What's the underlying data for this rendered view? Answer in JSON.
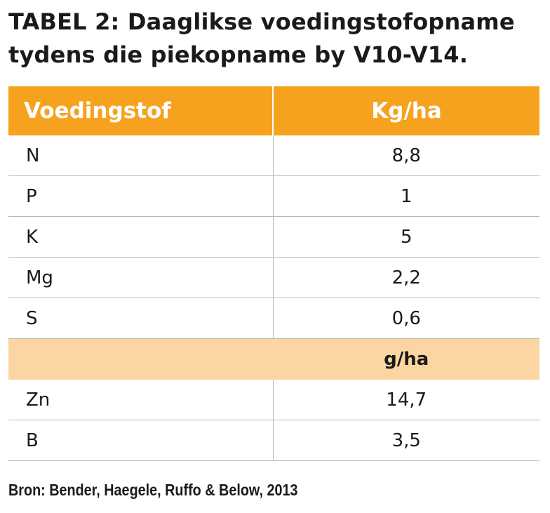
{
  "title": {
    "line1": "TABEL 2: Daaglikse voedingstofopname",
    "line2": "tydens die piekopname by V10-V14."
  },
  "table": {
    "headers": [
      "Voedingstof",
      "Kg/ha"
    ],
    "rows": [
      {
        "nutrient": "N",
        "value": "8,8"
      },
      {
        "nutrient": "P",
        "value": "1"
      },
      {
        "nutrient": "K",
        "value": "5"
      },
      {
        "nutrient": "Mg",
        "value": "2,2"
      },
      {
        "nutrient": "S",
        "value": "0,6"
      }
    ],
    "subheader": {
      "label": "",
      "unit": "g/ha"
    },
    "rows2": [
      {
        "nutrient": "Zn",
        "value": "14,7"
      },
      {
        "nutrient": "B",
        "value": "3,5"
      }
    ]
  },
  "source": "Bron: Bender, Haegele, Ruffo & Below, 2013",
  "colors": {
    "header_bg": "#f7a21e",
    "subheader_bg": "#fbd6a2",
    "header_text": "#ffffff",
    "row_divider": "#b9b9b9"
  }
}
